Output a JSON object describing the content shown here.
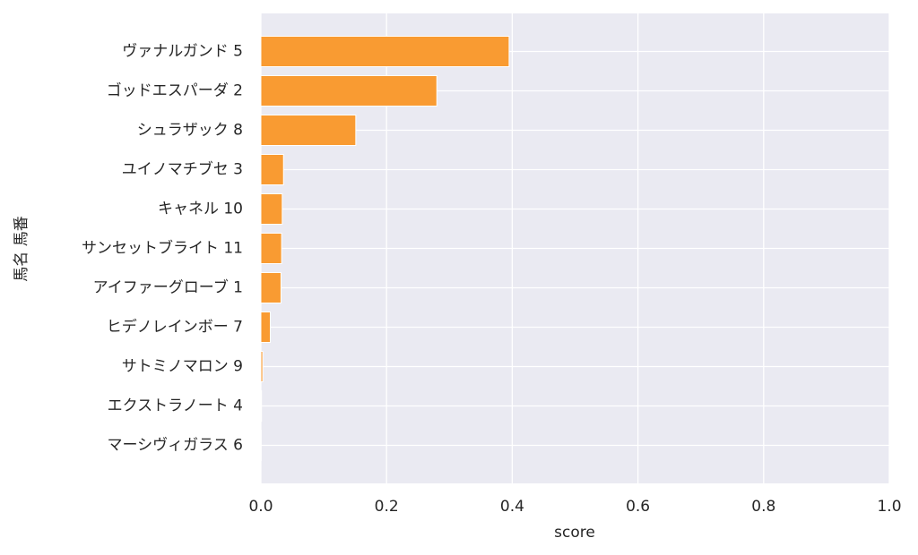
{
  "chart_data": {
    "type": "barh",
    "categories": [
      "ヴァナルガンド 5",
      "ゴッドエスパーダ 2",
      "シュラザック 8",
      "ユイノマチブセ 3",
      "キャネル 10",
      "サンセットブライト 11",
      "アイファーグローブ 1",
      "ヒデノレインボー 7",
      "サトミノマロン 9",
      "エクストラノート 4",
      "マーシヴィガラス 6"
    ],
    "values": [
      0.395,
      0.28,
      0.151,
      0.036,
      0.034,
      0.033,
      0.032,
      0.015,
      0.003,
      0.001,
      0.0005
    ],
    "color": "#f99b32",
    "xlabel": "score",
    "ylabel": "馬名 馬番",
    "xlim": [
      0,
      1
    ],
    "xticks": [
      {
        "value": 0,
        "label": "0.0"
      },
      0.2,
      0.4,
      0.6,
      0.8,
      {
        "value": 1,
        "label": "1.0"
      }
    ],
    "grid": true
  }
}
